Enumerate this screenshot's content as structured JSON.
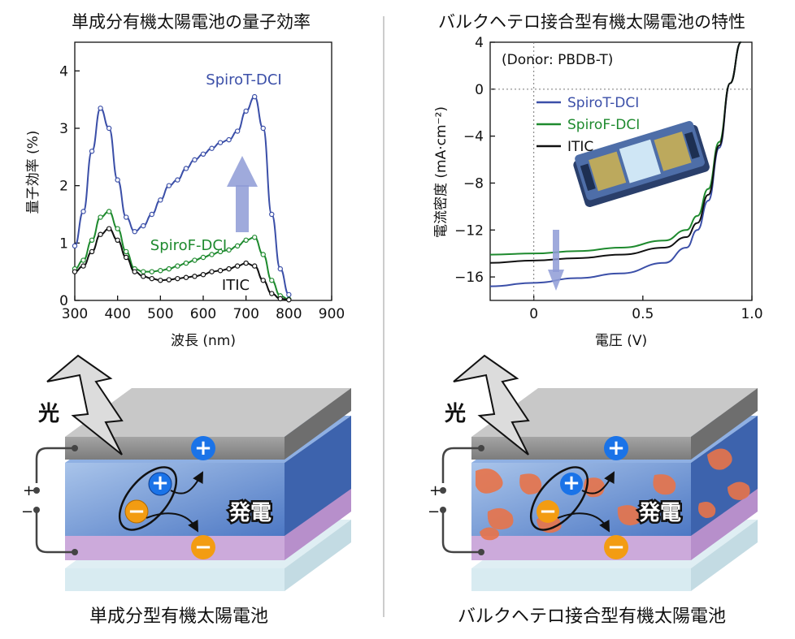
{
  "titles": {
    "left": "単成分有機太陽電池の量子効率",
    "right": "バルクヘテロ接合型有機太陽電池の特性"
  },
  "captions": {
    "left": "単成分型有機太陽電池",
    "right": "バルクヘテロ接合型有機太陽電池"
  },
  "diagram": {
    "light_label": "光",
    "power_label": "発電",
    "plus_label": "+",
    "minus_label": "−",
    "plus_charge": "+",
    "minus_charge": "−"
  },
  "colors": {
    "spiroT": "#3b4fa8",
    "spiroF": "#1e8a2e",
    "itic": "#111111",
    "arrow": "#8e9bd6",
    "hole": "#1a73e8",
    "electron": "#f39c12"
  },
  "chart_data": [
    {
      "type": "line",
      "xlabel": "波長 (nm)",
      "ylabel": "量子効率 (%)",
      "xlim": [
        300,
        900
      ],
      "ylim": [
        0,
        4.5
      ],
      "xticks": [
        "300",
        "400",
        "500",
        "600",
        "700",
        "800",
        "900"
      ],
      "yticks": [
        "0",
        "1",
        "2",
        "3",
        "4"
      ],
      "series": [
        {
          "name": "SpiroT-DCI",
          "x": [
            300,
            320,
            340,
            360,
            380,
            400,
            420,
            440,
            460,
            480,
            500,
            520,
            540,
            560,
            580,
            600,
            620,
            640,
            660,
            680,
            700,
            720,
            740,
            760,
            780,
            800
          ],
          "y": [
            0.95,
            1.55,
            2.6,
            3.35,
            3.0,
            2.1,
            1.45,
            1.2,
            1.3,
            1.5,
            1.75,
            2.0,
            2.1,
            2.3,
            2.45,
            2.55,
            2.65,
            2.75,
            2.8,
            2.95,
            3.3,
            3.55,
            3.0,
            1.5,
            0.55,
            0.1
          ]
        },
        {
          "name": "SpiroF-DCI",
          "x": [
            300,
            320,
            340,
            360,
            380,
            400,
            420,
            440,
            460,
            480,
            500,
            520,
            540,
            560,
            580,
            600,
            620,
            640,
            660,
            680,
            700,
            720,
            740,
            760,
            780,
            800
          ],
          "y": [
            0.55,
            0.7,
            1.05,
            1.45,
            1.55,
            1.25,
            0.85,
            0.55,
            0.5,
            0.5,
            0.52,
            0.55,
            0.6,
            0.65,
            0.7,
            0.75,
            0.8,
            0.85,
            0.88,
            0.95,
            1.05,
            1.1,
            0.8,
            0.35,
            0.08,
            0.02
          ]
        },
        {
          "name": "ITIC",
          "x": [
            300,
            320,
            340,
            360,
            380,
            400,
            420,
            440,
            460,
            480,
            500,
            520,
            540,
            560,
            580,
            600,
            620,
            640,
            660,
            680,
            700,
            720,
            740,
            760,
            780,
            800
          ],
          "y": [
            0.5,
            0.6,
            0.85,
            1.15,
            1.25,
            1.05,
            0.75,
            0.5,
            0.42,
            0.38,
            0.35,
            0.36,
            0.38,
            0.4,
            0.42,
            0.45,
            0.5,
            0.52,
            0.55,
            0.6,
            0.65,
            0.6,
            0.35,
            0.12,
            0.03,
            0.01
          ]
        }
      ],
      "annotation": "arrow up near 700 nm"
    },
    {
      "type": "line",
      "xlabel": "電圧 (V)",
      "ylabel": "電流密度 (mA·cm⁻²)",
      "xlim": [
        -0.2,
        1.0
      ],
      "ylim": [
        -18,
        4
      ],
      "xticks": [
        "0",
        "0.5",
        "1.0"
      ],
      "yticks": [
        "4",
        "0",
        "−4",
        "−8",
        "−12",
        "−16"
      ],
      "note": "(Donor: PBDB-T)",
      "series": [
        {
          "name": "SpiroT-DCI",
          "x": [
            -0.2,
            0,
            0.2,
            0.4,
            0.6,
            0.7,
            0.75,
            0.8,
            0.85,
            0.9,
            0.95
          ],
          "y": [
            -16.8,
            -16.5,
            -16.1,
            -15.7,
            -14.8,
            -13.5,
            -12.0,
            -9.5,
            -5.0,
            0.5,
            4
          ]
        },
        {
          "name": "SpiroF-DCI",
          "x": [
            -0.2,
            0,
            0.2,
            0.4,
            0.6,
            0.7,
            0.75,
            0.8,
            0.85,
            0.9,
            0.95
          ],
          "y": [
            -14.1,
            -14.0,
            -13.8,
            -13.5,
            -12.9,
            -12.0,
            -10.8,
            -8.5,
            -4.5,
            0.5,
            4
          ]
        },
        {
          "name": "ITIC",
          "x": [
            -0.2,
            0,
            0.2,
            0.4,
            0.6,
            0.7,
            0.75,
            0.8,
            0.85,
            0.9,
            0.95
          ],
          "y": [
            -14.8,
            -14.6,
            -14.4,
            -14.1,
            -13.5,
            -12.6,
            -11.4,
            -9.0,
            -4.8,
            0.5,
            4
          ]
        }
      ]
    }
  ]
}
